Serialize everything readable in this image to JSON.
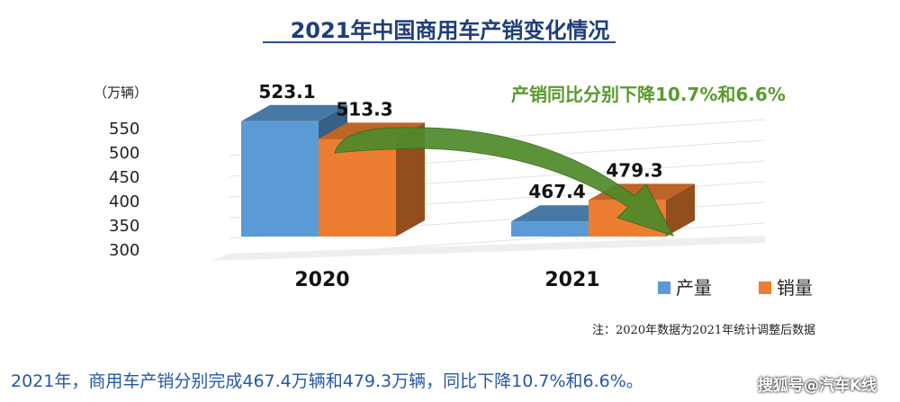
{
  "title": "2021年中国商用车产销变化情况",
  "unit_label": "（万辆）",
  "annotation": "产销同比分别下降10.7%和6.6%",
  "note": "注：2020年数据为2021年统计调整后数据",
  "caption": "2021年，商用车产销分别完成467.4万辆和479.3万辆，同比下降10.7%和6.6%。",
  "watermark": "搜狐号@汽车K线",
  "colors": {
    "production": "#5b9bd5",
    "sales": "#ed7d31",
    "arrow": "#4f8a2a",
    "title": "#1f3d7a"
  },
  "chart_data": {
    "type": "bar",
    "categories": [
      "2020",
      "2021"
    ],
    "series": [
      {
        "name": "产量",
        "values": [
          523.1,
          467.4
        ]
      },
      {
        "name": "销量",
        "values": [
          513.3,
          479.3
        ]
      }
    ],
    "ylabel": "（万辆）",
    "yticks": [
      550,
      500,
      450,
      400,
      350,
      300
    ],
    "ylim": [
      300,
      550
    ],
    "legend": "bottom-right",
    "grid": false,
    "style": "3d-column"
  }
}
